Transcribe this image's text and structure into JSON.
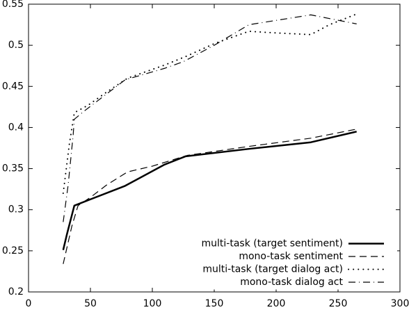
{
  "chart_data": {
    "type": "line",
    "xlim": [
      0,
      300
    ],
    "xticks": [
      0,
      50,
      100,
      150,
      200,
      250,
      300
    ],
    "ylim": [
      0.2,
      0.55
    ],
    "yticks": [
      0.2,
      0.25,
      0.3,
      0.35,
      0.4,
      0.45,
      0.5,
      0.55
    ],
    "legend": "lower right",
    "series": [
      {
        "name": "multi-task (target sentiment)",
        "color": "#000000",
        "dash": "solid",
        "width": 2.5,
        "x": [
          28,
          31,
          37,
          78,
          110,
          127,
          178,
          228,
          265
        ],
        "values": [
          0.251,
          0.27,
          0.305,
          0.329,
          0.355,
          0.365,
          0.374,
          0.382,
          0.395
        ]
      },
      {
        "name": "mono-task sentiment",
        "color": "#000000",
        "dash": "dashed",
        "width": 1.2,
        "x": [
          28,
          35,
          40,
          50,
          63,
          80,
          100,
          128,
          178,
          228,
          265
        ],
        "values": [
          0.234,
          0.28,
          0.305,
          0.315,
          0.33,
          0.346,
          0.353,
          0.366,
          0.377,
          0.387,
          0.398
        ]
      },
      {
        "name": "multi-task (target dialog act)",
        "color": "#000000",
        "dash": "dotted",
        "width": 2,
        "x": [
          28,
          33,
          37,
          48,
          63,
          80,
          110,
          128,
          150,
          178,
          200,
          228,
          243,
          265
        ],
        "values": [
          0.32,
          0.38,
          0.418,
          0.427,
          0.443,
          0.46,
          0.476,
          0.487,
          0.502,
          0.517,
          0.515,
          0.513,
          0.525,
          0.538
        ]
      },
      {
        "name": "mono-task dialog act",
        "color": "#000000",
        "dash": "dashdot",
        "width": 1.2,
        "x": [
          28,
          32,
          36,
          37,
          45,
          78,
          110,
          125,
          150,
          178,
          228,
          265
        ],
        "values": [
          0.285,
          0.33,
          0.39,
          0.41,
          0.42,
          0.458,
          0.472,
          0.48,
          0.5,
          0.525,
          0.537,
          0.526
        ]
      }
    ]
  }
}
